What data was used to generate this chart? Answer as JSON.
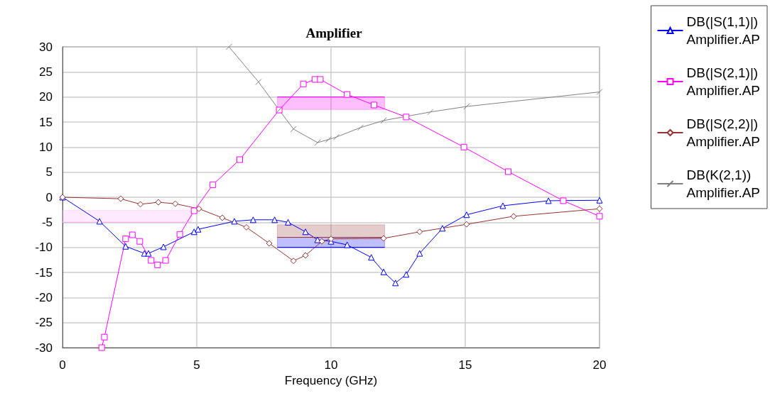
{
  "chart_data": {
    "type": "line",
    "title": "Amplifier",
    "xlabel": "Frequency (GHz)",
    "xlim": [
      0,
      20
    ],
    "xticks": [
      0,
      5,
      10,
      15,
      20
    ],
    "ylim": [
      -30,
      30
    ],
    "yticks": [
      -30,
      -25,
      -20,
      -15,
      -10,
      -5,
      0,
      5,
      10,
      15,
      20,
      25,
      30
    ],
    "grid": true,
    "legend": "right",
    "line_style": "solid",
    "series": [
      {
        "name": "DB(|S(1,1)|)\nAmplifier.AP",
        "color": "#0000ff",
        "marker": "triangle",
        "x": [
          0,
          1.38,
          2.35,
          3.05,
          3.2,
          3.76,
          4.9,
          5.05,
          6.4,
          7.1,
          7.9,
          8.4,
          9.05,
          9.5,
          10,
          10.6,
          11.5,
          11.96,
          12.4,
          12.8,
          13.3,
          14.15,
          15.05,
          16.4,
          18.1,
          20
        ],
        "values": [
          0,
          -4.8,
          -9.8,
          -11.2,
          -11.2,
          -9.9,
          -6.9,
          -6.4,
          -4.8,
          -4.5,
          -4.5,
          -5,
          -6.9,
          -8.5,
          -8.8,
          -9.5,
          -12,
          -14.9,
          -17.1,
          -15.4,
          -11.2,
          -6.2,
          -3.5,
          -1.7,
          -0.7,
          -0.6
        ]
      },
      {
        "name": "DB(|S(2,1)|)\nAmplifier.AP",
        "color": "#ff00ff",
        "marker": "square",
        "x": [
          1.46,
          1.56,
          2.35,
          2.6,
          2.88,
          3.3,
          3.54,
          3.84,
          4.37,
          4.9,
          5.6,
          6.6,
          8.07,
          8.97,
          9.4,
          9.6,
          10.6,
          11.6,
          12.8,
          14.95,
          16.6,
          18.65,
          20
        ],
        "values": [
          -30,
          -27.9,
          -8.3,
          -7.5,
          -8.8,
          -12.6,
          -13.5,
          -12.6,
          -7.4,
          -2.7,
          2.5,
          7.5,
          17.4,
          22.6,
          23.5,
          23.5,
          20.5,
          18.4,
          16,
          10,
          5.1,
          -0.7,
          -3.8
        ]
      },
      {
        "name": "DB(|S(2,2)|)\nAmplifier.AP",
        "color": "#993333",
        "marker": "diamond",
        "x": [
          0,
          2.17,
          2.9,
          3.57,
          4.2,
          5.08,
          5.95,
          6.85,
          7.7,
          8.6,
          9.05,
          9.66,
          10,
          11.96,
          13.3,
          15.05,
          16.8,
          20
        ],
        "values": [
          0,
          -0.3,
          -1.4,
          -1,
          -1.3,
          -2.3,
          -4.1,
          -6,
          -9.2,
          -12.7,
          -11.6,
          -8.8,
          -8.3,
          -8.2,
          -6.9,
          -5.4,
          -3.8,
          -2.3
        ]
      },
      {
        "name": "DB(K(2,1))\nAmplifier.AP",
        "color": "#808080",
        "marker": "cross",
        "x": [
          6.2,
          7.3,
          8.07,
          8.6,
          9.5,
          9.9,
          10.2,
          11.1,
          11.96,
          13.7,
          15.05,
          20
        ],
        "values": [
          30,
          23,
          17.4,
          13.6,
          10.9,
          11.5,
          12,
          13.9,
          15.3,
          17,
          18.1,
          21
        ]
      },
      {
        "color": "#ff00ff",
        "marker": "none",
        "x": [
          8,
          12
        ],
        "values": [
          20,
          20
        ],
        "lower": [
          17.5,
          17.5
        ],
        "upper": [
          20,
          20
        ]
      },
      {
        "color": "#ffaaff",
        "marker": "none",
        "x": [
          0,
          4.8
        ],
        "values": [
          -5,
          -5
        ],
        "lower": [
          -5,
          -5
        ],
        "upper": [
          -2.6,
          -2.6
        ]
      },
      {
        "color": "#0000ff",
        "marker": "none",
        "x": [
          8,
          12
        ],
        "values": [
          -10,
          -10
        ],
        "lower": [
          -10,
          -10
        ],
        "upper": [
          -8,
          -8
        ]
      },
      {
        "color": "#993333",
        "marker": "none",
        "x": [
          8,
          12
        ],
        "values": [
          -8,
          -8
        ],
        "lower": [
          -8,
          -8
        ],
        "upper": [
          -5.5,
          -5.5
        ]
      }
    ]
  }
}
